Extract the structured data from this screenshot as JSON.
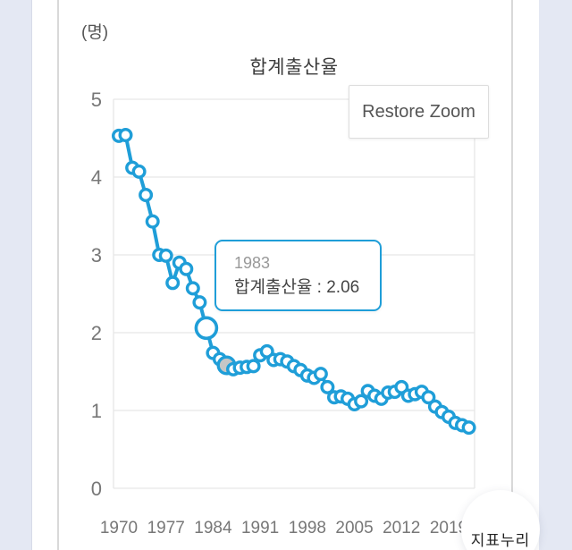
{
  "page": {
    "background": "#ffffff",
    "side_strip_color": "#e4e8f3"
  },
  "chart": {
    "unit_label": "(명)",
    "title": "합계출산율",
    "restore_zoom_label": "Restore Zoom"
  },
  "tooltip": {
    "line1": "1983",
    "line2": "합계출산율 : 2.06"
  },
  "badge": {
    "label": "지표누리"
  },
  "chart_data": {
    "type": "line",
    "title": "합계출산율",
    "ylabel": "(명)",
    "series_name": "합계출산율",
    "x": [
      1970,
      1971,
      1972,
      1973,
      1974,
      1975,
      1976,
      1977,
      1978,
      1979,
      1980,
      1981,
      1982,
      1983,
      1984,
      1985,
      1986,
      1987,
      1988,
      1989,
      1990,
      1991,
      1992,
      1993,
      1994,
      1995,
      1996,
      1997,
      1998,
      1999,
      2000,
      2001,
      2002,
      2003,
      2004,
      2005,
      2006,
      2007,
      2008,
      2009,
      2010,
      2011,
      2012,
      2013,
      2014,
      2015,
      2016,
      2017,
      2018,
      2019,
      2020,
      2021,
      2022
    ],
    "values": [
      4.53,
      4.54,
      4.12,
      4.07,
      3.77,
      3.43,
      3.0,
      2.99,
      2.64,
      2.9,
      2.82,
      2.57,
      2.39,
      2.06,
      1.74,
      1.66,
      1.58,
      1.53,
      1.55,
      1.56,
      1.57,
      1.71,
      1.76,
      1.65,
      1.66,
      1.63,
      1.57,
      1.52,
      1.45,
      1.42,
      1.47,
      1.3,
      1.17,
      1.18,
      1.15,
      1.08,
      1.12,
      1.25,
      1.19,
      1.15,
      1.23,
      1.24,
      1.3,
      1.19,
      1.21,
      1.24,
      1.17,
      1.05,
      0.98,
      0.92,
      0.84,
      0.81,
      0.78
    ],
    "xticks": [
      1970,
      1977,
      1984,
      1991,
      1998,
      2005,
      2012,
      2019
    ],
    "yticks": [
      0,
      1,
      2,
      3,
      4,
      5
    ],
    "ylim": [
      0,
      5
    ],
    "xlim": [
      1970,
      2023
    ],
    "grid": "horizontal-only",
    "legend": "none",
    "line_color": "#1f9ed8",
    "grid_color": "#e6e6e6",
    "tick_label_color": "#777777",
    "marker_style": "open-circle",
    "highlighted_point": {
      "x": 1983,
      "y": 2.06
    },
    "halo_point": {
      "x": 1986,
      "y": 1.58,
      "fill": "#c6c6c6"
    }
  }
}
